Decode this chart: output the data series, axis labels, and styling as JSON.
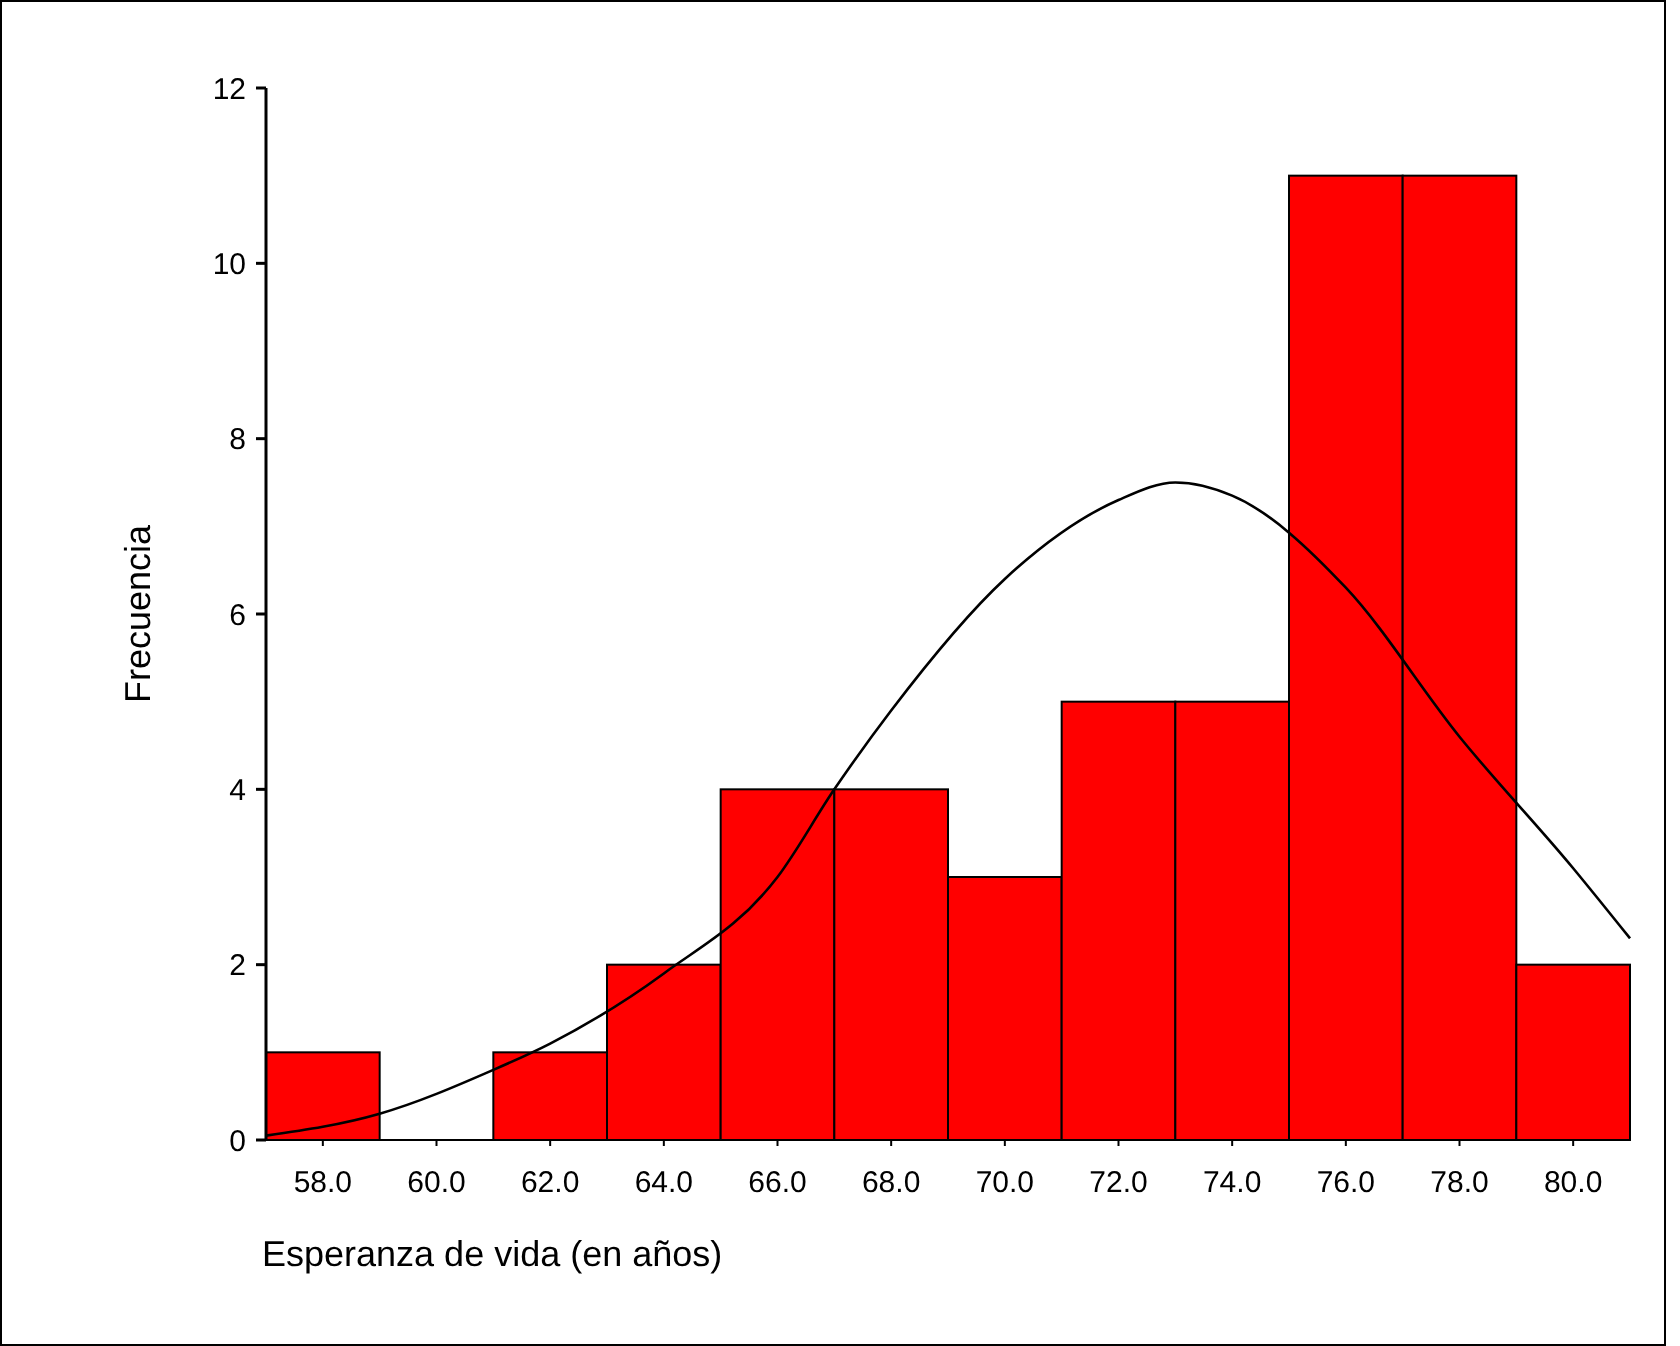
{
  "chart_data": {
    "type": "histogram",
    "xlabel": "Esperanza de vida (en años)",
    "ylabel": "Frecuencia",
    "bins": [
      57,
      59,
      61,
      63,
      65,
      67,
      69,
      71,
      73,
      75,
      77,
      79,
      81
    ],
    "values": [
      1,
      0,
      1,
      2,
      4,
      4,
      3,
      5,
      5,
      11,
      11,
      2
    ],
    "color": "#ff0000",
    "series": [
      {
        "type": "line",
        "color": "#000000",
        "x": [
          57,
          59,
          61,
          62,
          64,
          66,
          67,
          68,
          70,
          72,
          73,
          74,
          76,
          78,
          80,
          81
        ],
        "values": [
          0.05,
          0.3,
          0.8,
          1.1,
          1.9,
          3.0,
          4.0,
          4.9,
          6.4,
          7.3,
          7.5,
          7.35,
          6.3,
          4.6,
          3.1,
          2.3
        ]
      }
    ],
    "xlim": [
      57,
      81
    ],
    "xticks": [
      {
        "value": 58,
        "label": "58.0"
      },
      {
        "value": 60,
        "label": "60.0"
      },
      {
        "value": 62,
        "label": "62.0"
      },
      {
        "value": 64,
        "label": "64.0"
      },
      {
        "value": 66,
        "label": "66.0"
      },
      {
        "value": 68,
        "label": "68.0"
      },
      {
        "value": 70,
        "label": "70.0"
      },
      {
        "value": 72,
        "label": "72.0"
      },
      {
        "value": 74,
        "label": "74.0"
      },
      {
        "value": 76,
        "label": "76.0"
      },
      {
        "value": 78,
        "label": "78.0"
      },
      {
        "value": 80,
        "label": "80.0"
      }
    ],
    "ylim": [
      0,
      12
    ],
    "yticks": [
      0,
      2,
      4,
      6,
      8,
      10,
      12
    ],
    "grid": false
  }
}
